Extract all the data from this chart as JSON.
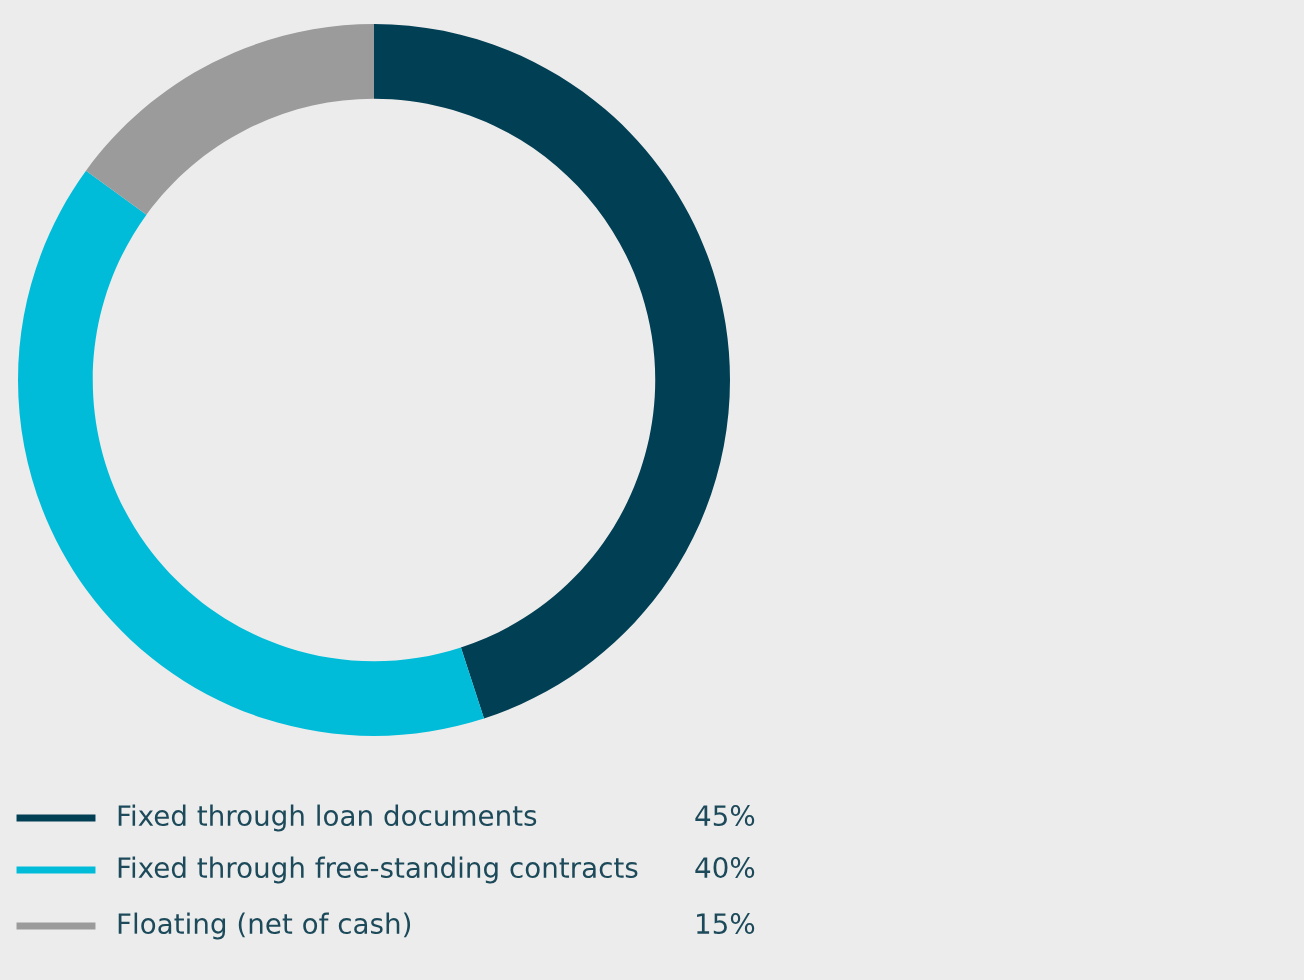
{
  "chart_data": {
    "type": "donut",
    "categories": [
      "Fixed through loan documents",
      "Fixed through free-standing contracts",
      "Floating (net of cash)"
    ],
    "values": [
      45,
      40,
      15
    ],
    "colors": [
      "#003f54",
      "#00bcd9",
      "#9b9b9b"
    ],
    "value_labels": [
      "45%",
      "40%",
      "15%"
    ],
    "legend": "bottom left"
  }
}
